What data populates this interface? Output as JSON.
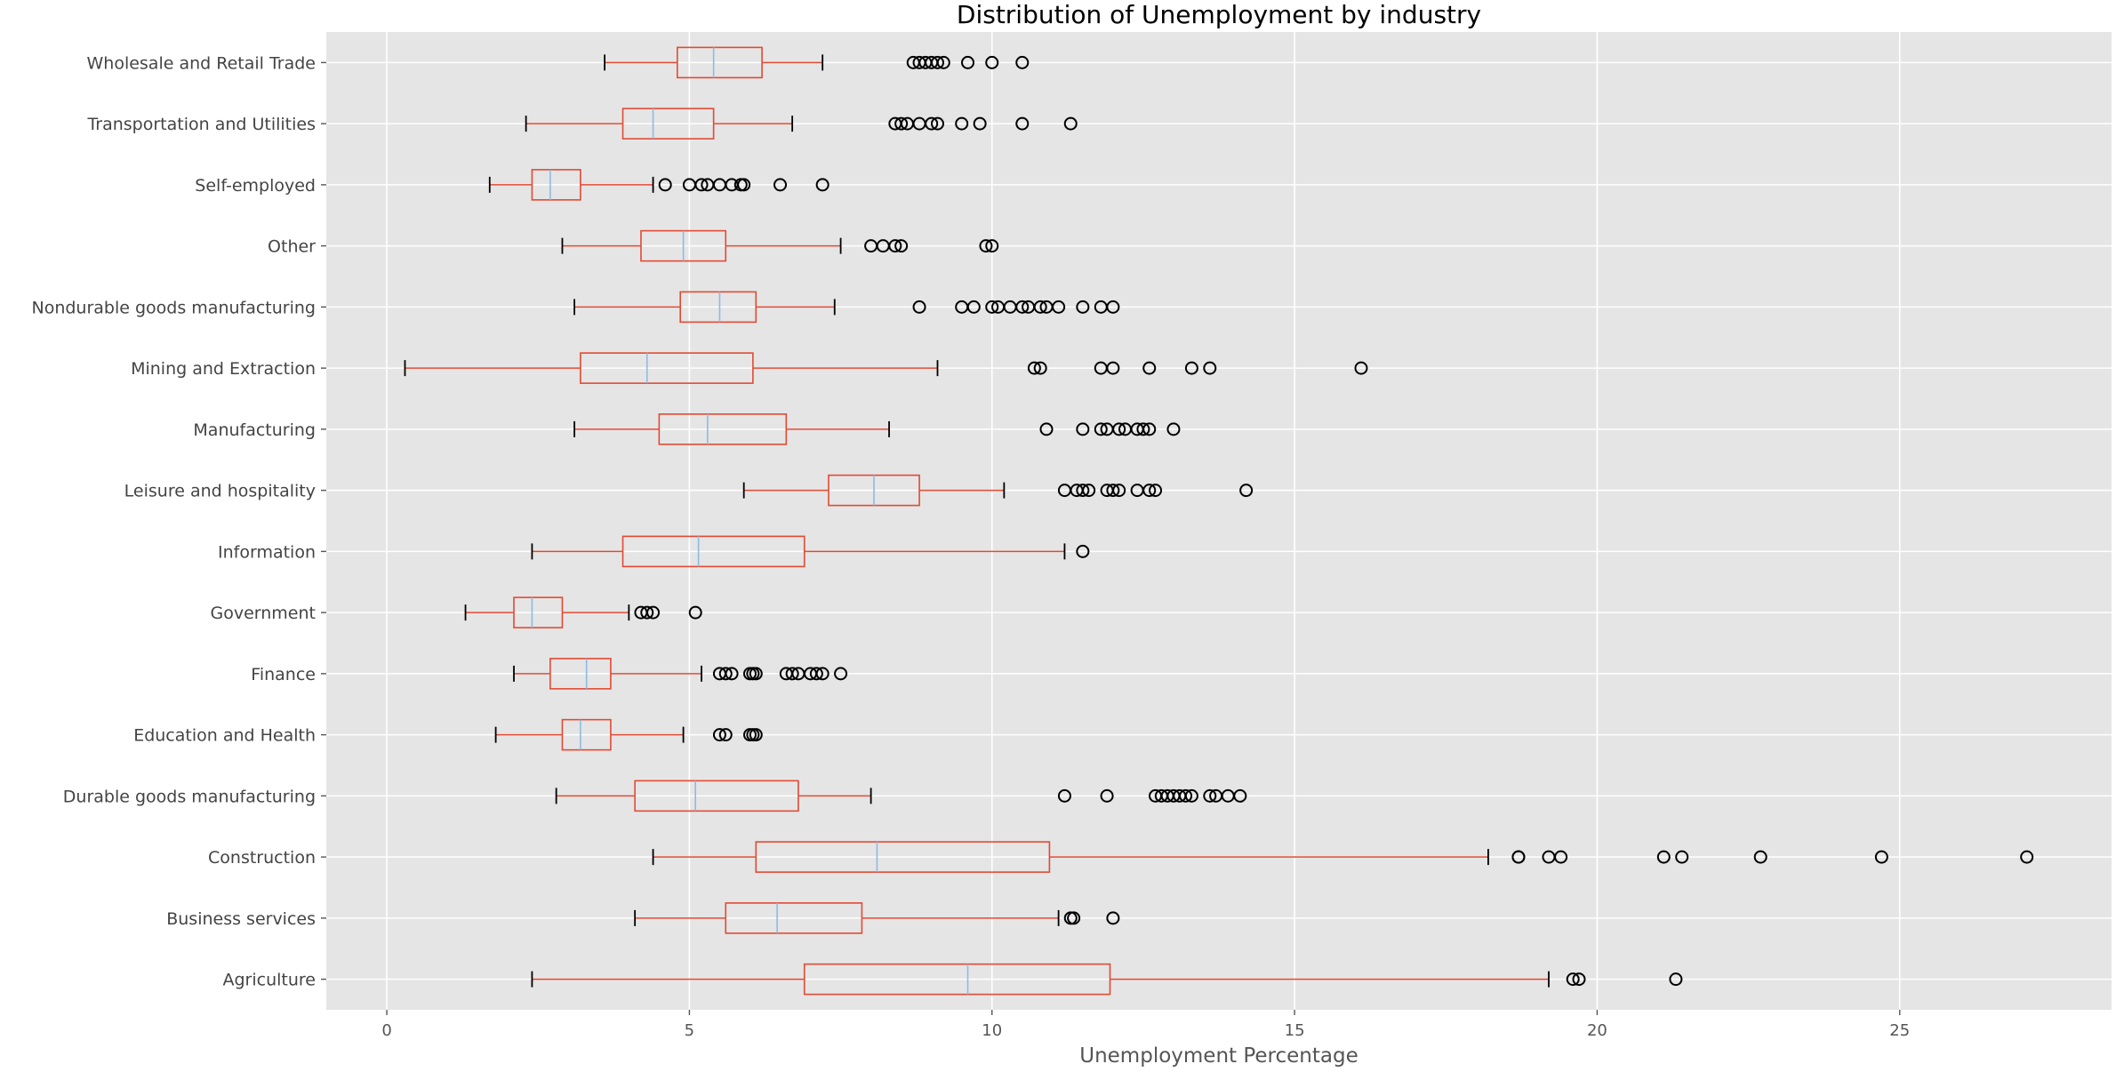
{
  "chart_data": {
    "type": "boxplot",
    "orientation": "horizontal",
    "title": "Distribution of Unemployment by industry",
    "xlabel": "Unemployment Percentage",
    "ylabel": "",
    "xlim": [
      -1.0,
      28.5
    ],
    "xticks": [
      0,
      5,
      10,
      15,
      20,
      25
    ],
    "grid": true,
    "colors": {
      "background": "#E5E5E5",
      "grid": "#FFFFFF",
      "box": "#E24A33",
      "median": "#8EBAE5",
      "whisker_cap": "#000000",
      "flier": "#000000"
    },
    "categories": [
      "Agriculture",
      "Business services",
      "Construction",
      "Durable goods manufacturing",
      "Education and Health",
      "Finance",
      "Government",
      "Information",
      "Leisure and hospitality",
      "Manufacturing",
      "Mining and Extraction",
      "Nondurable goods manufacturing",
      "Other",
      "Self-employed",
      "Transportation and Utilities",
      "Wholesale and Retail Trade"
    ],
    "boxes": [
      {
        "name": "Agriculture",
        "whislo": 2.4,
        "q1": 6.9,
        "median": 9.6,
        "q3": 11.95,
        "whishi": 19.2,
        "fliers": [
          19.6,
          19.7,
          21.3
        ]
      },
      {
        "name": "Business services",
        "whislo": 4.1,
        "q1": 5.6,
        "median": 6.45,
        "q3": 7.85,
        "whishi": 11.1,
        "fliers": [
          11.3,
          11.35,
          12.0
        ]
      },
      {
        "name": "Construction",
        "whislo": 4.4,
        "q1": 6.1,
        "median": 8.1,
        "q3": 10.95,
        "whishi": 18.2,
        "fliers": [
          18.7,
          18.7,
          19.2,
          19.4,
          21.1,
          21.4,
          22.7,
          24.7,
          27.1
        ]
      },
      {
        "name": "Durable goods manufacturing",
        "whislo": 2.8,
        "q1": 4.1,
        "median": 5.1,
        "q3": 6.8,
        "whishi": 8.0,
        "fliers": [
          11.2,
          11.9,
          12.7,
          12.8,
          12.9,
          13.0,
          13.1,
          13.2,
          13.3,
          13.6,
          13.7,
          13.9,
          14.1
        ]
      },
      {
        "name": "Education and Health",
        "whislo": 1.8,
        "q1": 2.9,
        "median": 3.2,
        "q3": 3.7,
        "whishi": 4.9,
        "fliers": [
          5.5,
          5.6,
          6.0,
          6.05,
          6.1
        ]
      },
      {
        "name": "Finance",
        "whislo": 2.1,
        "q1": 2.7,
        "median": 3.3,
        "q3": 3.7,
        "whishi": 5.2,
        "fliers": [
          5.5,
          5.6,
          5.7,
          6.0,
          6.05,
          6.1,
          6.6,
          6.7,
          6.8,
          7.0,
          7.1,
          7.2,
          7.5
        ]
      },
      {
        "name": "Government",
        "whislo": 1.3,
        "q1": 2.1,
        "median": 2.4,
        "q3": 2.9,
        "whishi": 4.0,
        "fliers": [
          4.2,
          4.3,
          4.4,
          5.1
        ]
      },
      {
        "name": "Information",
        "whislo": 2.4,
        "q1": 3.9,
        "median": 5.15,
        "q3": 6.9,
        "whishi": 11.2,
        "fliers": [
          11.5
        ]
      },
      {
        "name": "Leisure and hospitality",
        "whislo": 5.9,
        "q1": 7.3,
        "median": 8.05,
        "q3": 8.8,
        "whishi": 10.2,
        "fliers": [
          11.2,
          11.4,
          11.5,
          11.6,
          11.9,
          12.0,
          12.1,
          12.4,
          12.6,
          12.7,
          14.2
        ]
      },
      {
        "name": "Manufacturing",
        "whislo": 3.1,
        "q1": 4.5,
        "median": 5.3,
        "q3": 6.6,
        "whishi": 8.3,
        "fliers": [
          10.9,
          11.5,
          11.8,
          11.9,
          12.1,
          12.2,
          12.4,
          12.5,
          12.6,
          13.0
        ]
      },
      {
        "name": "Mining and Extraction",
        "whislo": 0.3,
        "q1": 3.2,
        "median": 4.3,
        "q3": 6.05,
        "whishi": 9.1,
        "fliers": [
          10.7,
          10.8,
          11.8,
          12.0,
          12.6,
          13.3,
          13.6,
          16.1
        ]
      },
      {
        "name": "Nondurable goods manufacturing",
        "whislo": 3.1,
        "q1": 4.85,
        "median": 5.5,
        "q3": 6.1,
        "whishi": 7.4,
        "fliers": [
          8.8,
          9.5,
          9.7,
          10.0,
          10.1,
          10.3,
          10.5,
          10.6,
          10.8,
          10.9,
          11.1,
          11.5,
          11.8,
          12.0
        ]
      },
      {
        "name": "Other",
        "whislo": 2.9,
        "q1": 4.2,
        "median": 4.9,
        "q3": 5.6,
        "whishi": 7.5,
        "fliers": [
          8.0,
          8.2,
          8.4,
          8.5,
          9.9,
          10.0
        ]
      },
      {
        "name": "Self-employed",
        "whislo": 1.7,
        "q1": 2.4,
        "median": 2.7,
        "q3": 3.2,
        "whishi": 4.4,
        "fliers": [
          4.6,
          5.0,
          5.2,
          5.3,
          5.5,
          5.7,
          5.85,
          5.9,
          6.5,
          7.2
        ]
      },
      {
        "name": "Transportation and Utilities",
        "whislo": 2.3,
        "q1": 3.9,
        "median": 4.4,
        "q3": 5.4,
        "whishi": 6.7,
        "fliers": [
          8.4,
          8.5,
          8.6,
          8.8,
          9.0,
          9.1,
          9.5,
          9.8,
          10.5,
          11.3
        ]
      },
      {
        "name": "Wholesale and Retail Trade",
        "whislo": 3.6,
        "q1": 4.8,
        "median": 5.4,
        "q3": 6.2,
        "whishi": 7.2,
        "fliers": [
          8.7,
          8.8,
          8.9,
          9.0,
          9.1,
          9.2,
          9.6,
          10.0,
          10.5
        ]
      }
    ]
  }
}
